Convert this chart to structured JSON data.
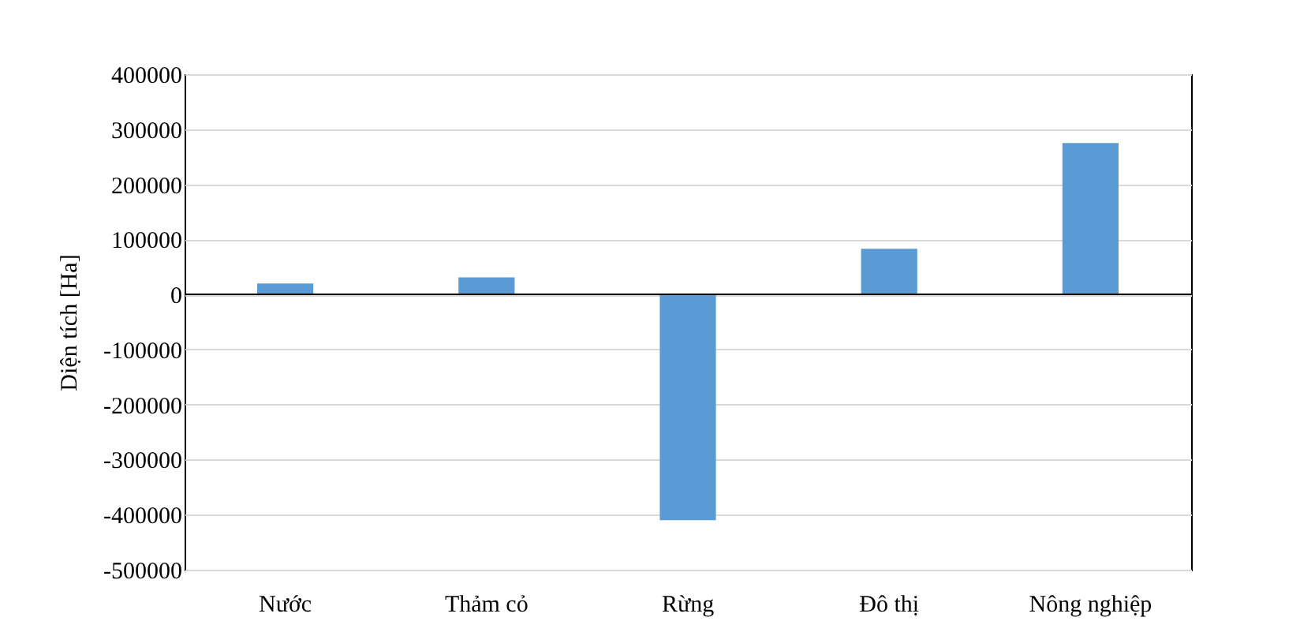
{
  "chart_data": {
    "type": "bar",
    "ylabel": "Diện tích [Ha]",
    "categories": [
      "Nước",
      "Thảm cỏ",
      "Rừng",
      "Đô thị",
      "Nông nghiệp"
    ],
    "values": [
      20000,
      31000,
      -410000,
      83000,
      275000
    ],
    "color": "#5b9bd5",
    "ylim": [
      -500000,
      400000
    ],
    "yticks": [
      -500000,
      -400000,
      -300000,
      -200000,
      -100000,
      0,
      100000,
      200000,
      300000,
      400000
    ],
    "grid": "y"
  }
}
